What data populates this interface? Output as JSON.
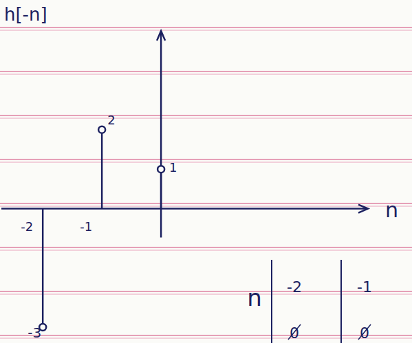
{
  "chart_data": {
    "type": "stem",
    "title": "h[-n]",
    "x_label": "n",
    "x": [
      -2,
      -1,
      0
    ],
    "values": [
      -3,
      2,
      1
    ],
    "color": "#1c2160",
    "xlim": [
      -2.7,
      3.5
    ],
    "xticks": [
      -2,
      -1
    ],
    "ylim": [
      -3.4,
      4.5
    ],
    "data_labels": true,
    "tick_labels": "x",
    "marker": "circle",
    "table": {
      "header": [
        "n",
        "-2",
        "-1"
      ],
      "row": [
        "0",
        "0"
      ]
    }
  }
}
